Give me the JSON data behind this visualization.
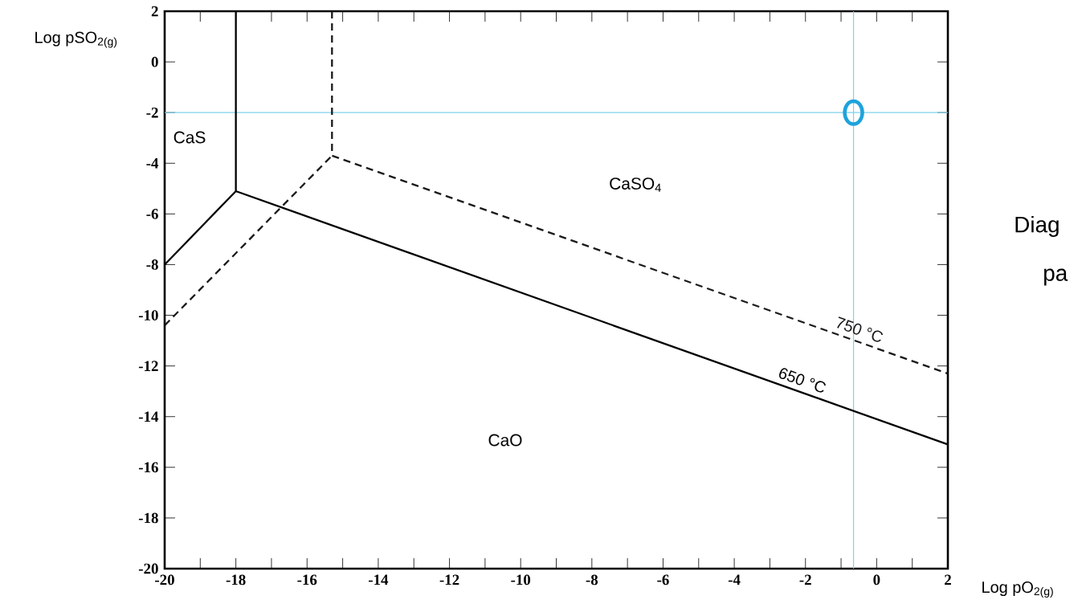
{
  "chart_data": {
    "type": "line",
    "xlabel": "Log pO$_{2(g)}$",
    "ylabel": "Log pSO$_{2(g)}$",
    "xlim": [
      -20,
      2
    ],
    "ylim": [
      -20,
      2
    ],
    "xticks": [
      -20,
      {
        "value": -19,
        "label": null
      },
      -18,
      {
        "value": -17,
        "label": null
      },
      -16,
      {
        "value": -15,
        "label": null
      },
      -14,
      {
        "value": -13,
        "label": null
      },
      -12,
      {
        "value": -11,
        "label": null
      },
      -10,
      {
        "value": -9,
        "label": null
      },
      -8,
      {
        "value": -7,
        "label": null
      },
      -6,
      {
        "value": -5,
        "label": null
      },
      -4,
      {
        "value": -3,
        "label": null
      },
      -2,
      {
        "value": -1,
        "label": null
      },
      0,
      {
        "value": 1,
        "label": null
      },
      2
    ],
    "yticks": [
      -20,
      -18,
      -16,
      -14,
      -12,
      -10,
      -8,
      -6,
      -4,
      -2,
      0,
      2
    ],
    "grid": false,
    "series": [
      {
        "name": "650 °C",
        "color": "#000000",
        "line_style": "solid",
        "marker": "none",
        "x": [
          -18,
          -18,
          2,
          null,
          -20,
          -18
        ],
        "values": [
          2,
          -5.1,
          -15.1,
          null,
          -8,
          -5.1
        ]
      },
      {
        "name": "750 °C",
        "color": "#1a1a1a",
        "line_style": "dashed",
        "marker": "none",
        "x": [
          -15.3,
          -15.3,
          2,
          null,
          -20,
          -15.3
        ],
        "values": [
          2,
          -3.7,
          -12.3,
          null,
          -10.4,
          -3.7
        ]
      },
      {
        "type": "scatter",
        "color": "#1ea3dc",
        "marker": "circle",
        "x": [
          -0.65
        ],
        "values": [
          -2
        ]
      }
    ],
    "ref_lines": [
      {
        "axis": "x",
        "value": -0.65,
        "color": "#7fd0ea"
      },
      {
        "axis": "y",
        "value": -2,
        "color": "#7fd0ea"
      }
    ],
    "annotations": [
      "CaS",
      "CaSO$_{4}$",
      "CaO",
      "Diag",
      "pa"
    ]
  }
}
